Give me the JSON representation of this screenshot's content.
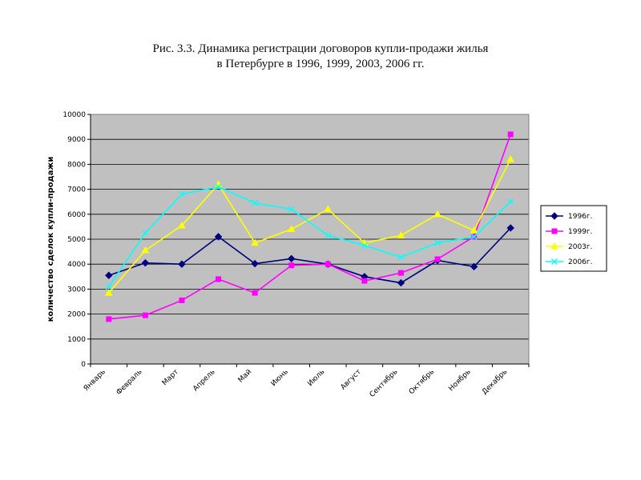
{
  "title": {
    "line1": "Рис. 3.3. Динамика регистрации договоров купли-продажи жилья",
    "line2": "в Петербурге в 1996, 1999, 2003, 2006 гг."
  },
  "chart_data": {
    "type": "line",
    "ylabel": "количество сделок купли-продажи",
    "xlabel": "",
    "ylim": [
      0,
      10000
    ],
    "yticks": [
      0,
      1000,
      2000,
      3000,
      4000,
      5000,
      6000,
      7000,
      8000,
      9000,
      10000
    ],
    "grid": "horizontal",
    "legend_position": "right",
    "categories": [
      "Январь",
      "Февраль",
      "Март",
      "Апрель",
      "Май",
      "Июнь",
      "Июль",
      "Август",
      "Сентябрь",
      "Октябрь",
      "Ноябрь",
      "Декабрь"
    ],
    "series": [
      {
        "name": "1996г.",
        "color": "#000080",
        "marker": "diamond",
        "values": [
          3550,
          4050,
          4000,
          5100,
          4020,
          4220,
          4000,
          3500,
          3250,
          4150,
          3900,
          5450
        ]
      },
      {
        "name": "1999г.",
        "color": "#ff00ff",
        "marker": "square",
        "values": [
          1800,
          1950,
          2550,
          3400,
          2850,
          3950,
          4000,
          3330,
          3650,
          4200,
          5100,
          9200
        ]
      },
      {
        "name": "2003г.",
        "color": "#ffff00",
        "marker": "triangle",
        "values": [
          2850,
          4550,
          5550,
          7200,
          4850,
          5400,
          6200,
          4850,
          5150,
          6000,
          5350,
          8200
        ]
      },
      {
        "name": "2006г.",
        "color": "#00ffff",
        "marker": "x",
        "values": [
          3100,
          5250,
          6800,
          7100,
          6450,
          6200,
          5150,
          4750,
          4280,
          4850,
          5100,
          6500
        ]
      }
    ]
  }
}
